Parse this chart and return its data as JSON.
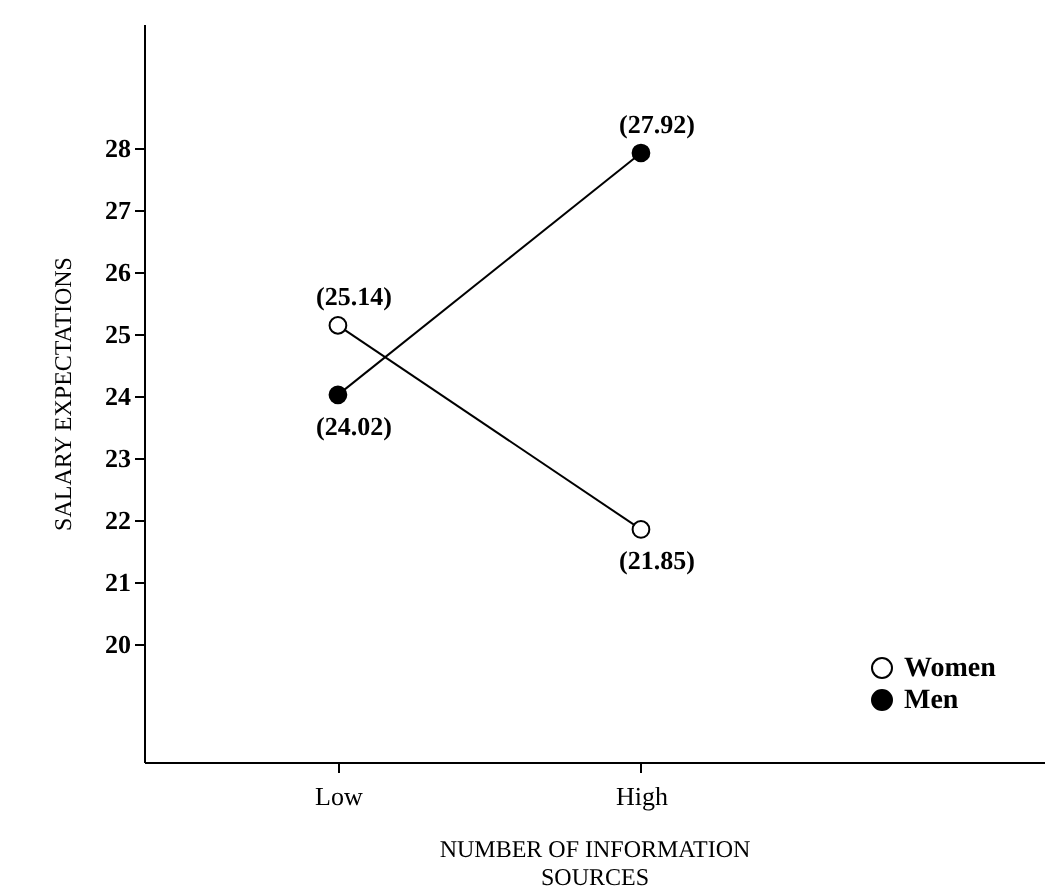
{
  "chart_data": {
    "type": "line",
    "xlabel": "NUMBER OF INFORMATION SOURCES",
    "ylabel": "SALARY EXPECTATIONS",
    "categories": [
      "Low",
      "High"
    ],
    "series": [
      {
        "name": "Women",
        "color": "#ffffff",
        "values": [
          25.14,
          21.85
        ],
        "value_labels": [
          "(25.14)",
          "(21.85)"
        ]
      },
      {
        "name": "Men",
        "color": "#000000",
        "values": [
          24.02,
          27.92
        ],
        "value_labels": [
          "(24.02)",
          "(27.92)"
        ]
      }
    ],
    "ylim": [
      18.1,
      30
    ],
    "yticks": [
      20,
      21,
      22,
      23,
      24,
      25,
      26,
      27,
      28
    ],
    "marker": "circle",
    "line_style": "solid",
    "legend": "bottom right",
    "grid": false
  }
}
